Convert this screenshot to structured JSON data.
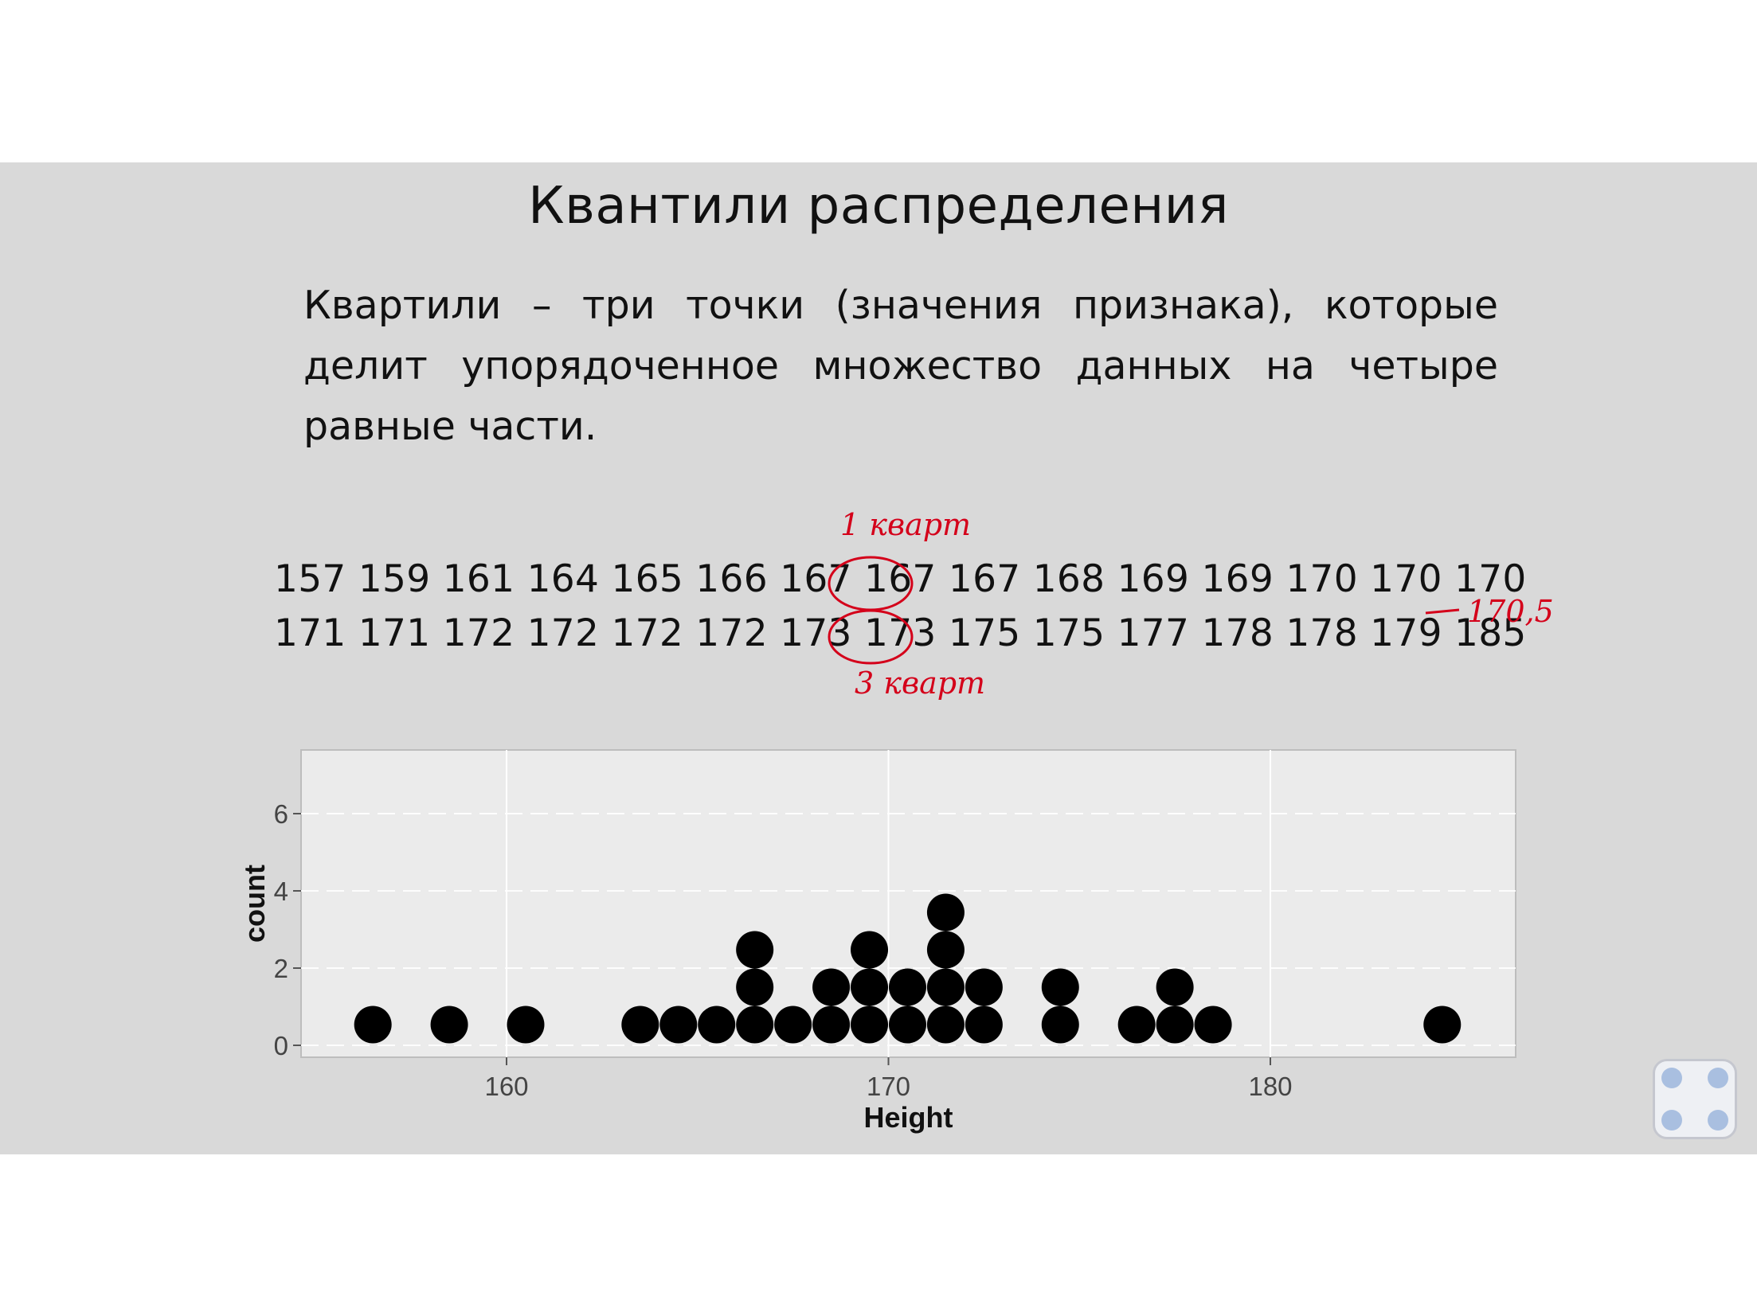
{
  "slide": {
    "title": "Квантили распределения",
    "paragraph": "Квартили – три точки (значения признака), которые делит упорядоченное множество данных на четыре равные части.",
    "row1": [
      "157",
      "159",
      "161",
      "164",
      "165",
      "166",
      "167",
      "167",
      "167",
      "168",
      "169",
      "169",
      "170",
      "170",
      "170"
    ],
    "row2": [
      "171",
      "171",
      "172",
      "172",
      "172",
      "172",
      "173",
      "173",
      "175",
      "175",
      "177",
      "178",
      "178",
      "179",
      "185"
    ],
    "annotations": {
      "q1": "1 кварт",
      "q3": "3 кварт",
      "median": "170,5"
    },
    "accent_color": "#d4001a"
  },
  "chart_data": {
    "type": "dotplot",
    "xlabel": "Height",
    "ylabel": "count",
    "x_ticks": [
      160,
      170,
      180
    ],
    "y_ticks": [
      0,
      2,
      4,
      6
    ],
    "xlim": [
      154.5,
      186.5
    ],
    "ylim": [
      0,
      7.5
    ],
    "grid": true,
    "dot_color": "#000000",
    "stacks": [
      {
        "x": 156.5,
        "count": 1
      },
      {
        "x": 158.5,
        "count": 1
      },
      {
        "x": 160.5,
        "count": 1
      },
      {
        "x": 163.5,
        "count": 1
      },
      {
        "x": 164.5,
        "count": 1
      },
      {
        "x": 165.5,
        "count": 1
      },
      {
        "x": 166.5,
        "count": 3
      },
      {
        "x": 167.5,
        "count": 1
      },
      {
        "x": 168.5,
        "count": 2
      },
      {
        "x": 169.5,
        "count": 3
      },
      {
        "x": 170.5,
        "count": 2
      },
      {
        "x": 171.5,
        "count": 4
      },
      {
        "x": 172.5,
        "count": 2
      },
      {
        "x": 174.5,
        "count": 2
      },
      {
        "x": 176.5,
        "count": 1
      },
      {
        "x": 177.5,
        "count": 2
      },
      {
        "x": 178.5,
        "count": 1
      },
      {
        "x": 184.5,
        "count": 1
      }
    ]
  }
}
